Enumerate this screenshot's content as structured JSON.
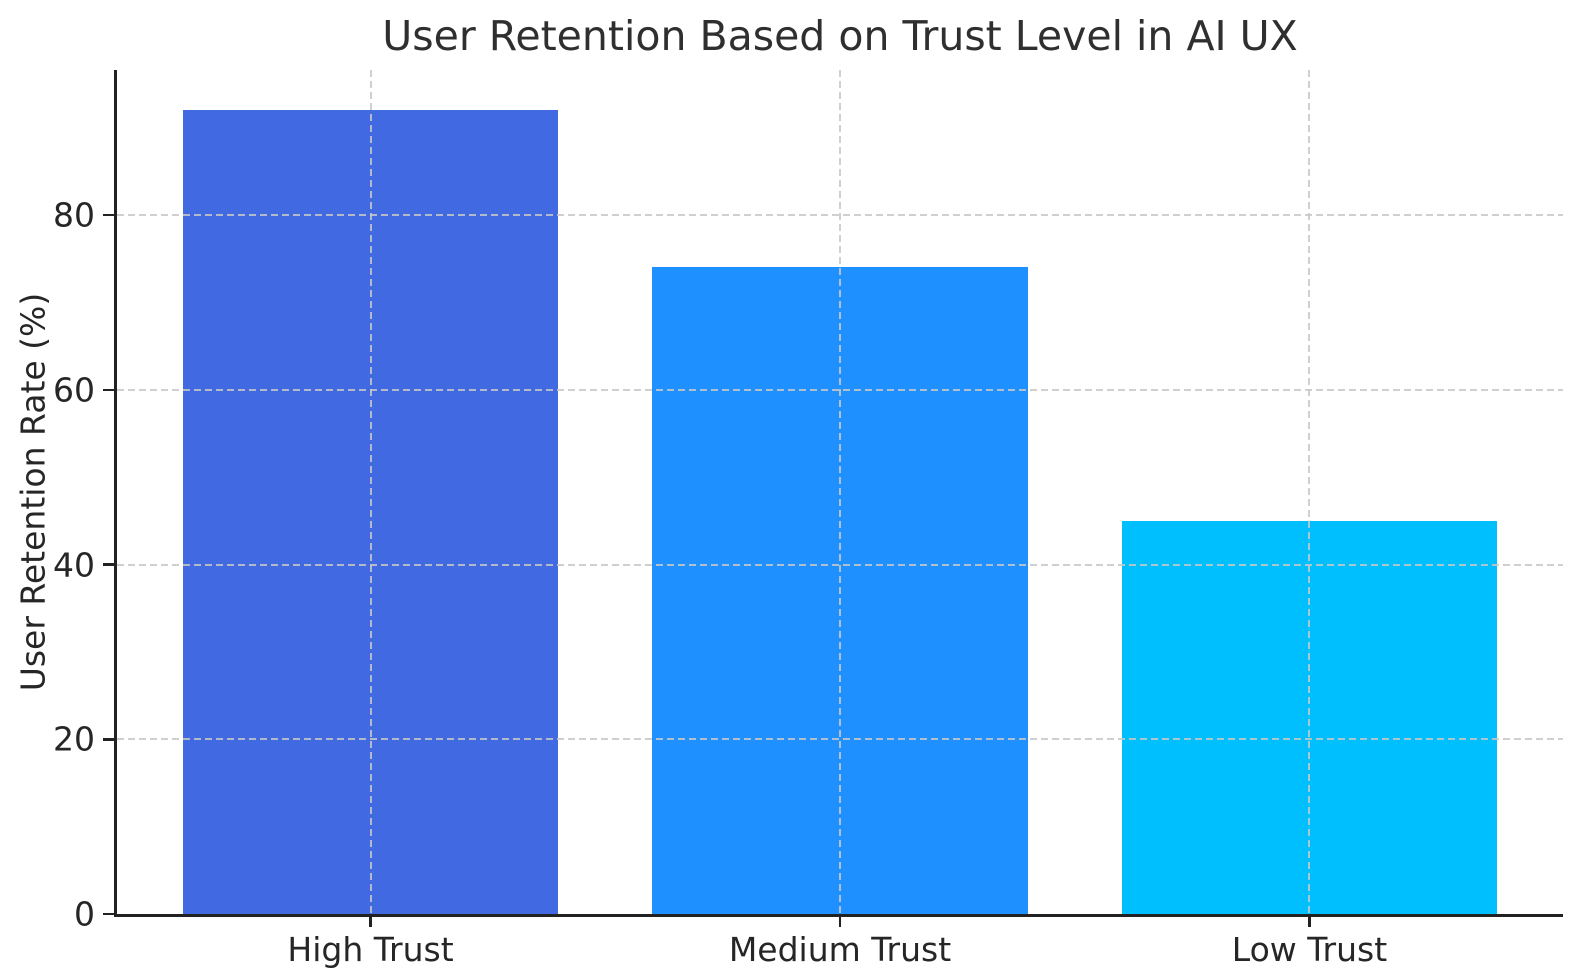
{
  "chart_data": {
    "type": "bar",
    "title": "User Retention Based on Trust Level in AI UX",
    "xlabel": "",
    "ylabel": "User Retention Rate (%)",
    "categories": [
      "High Trust",
      "Medium Trust",
      "Low Trust"
    ],
    "values": [
      92,
      74,
      45
    ],
    "bar_colors": [
      "#4169E1",
      "#1E90FF",
      "#00BFFF"
    ],
    "yticks": [
      0,
      20,
      40,
      60,
      80
    ],
    "ylim": [
      0,
      96.6
    ],
    "bar_width_fraction": 0.8,
    "grid": true,
    "grid_style": "dashed",
    "grid_above_bars": true,
    "legend": false,
    "spine_color": "#222222",
    "grid_color": "rgba(200,200,200,0.85)",
    "text_color": "#262626",
    "background_color": "#ffffff"
  }
}
